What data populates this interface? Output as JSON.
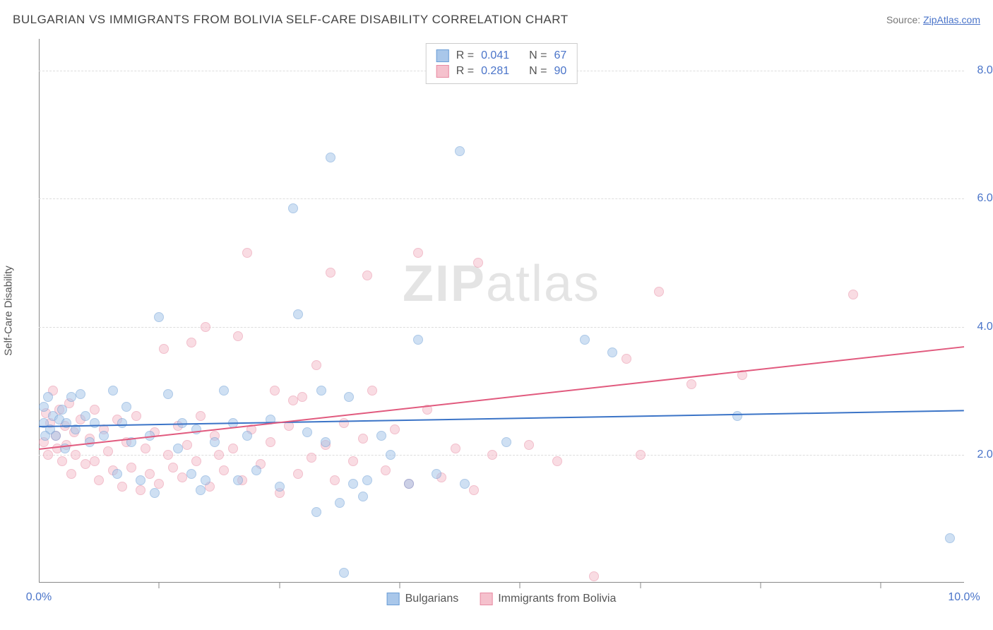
{
  "header": {
    "title": "BULGARIAN VS IMMIGRANTS FROM BOLIVIA SELF-CARE DISABILITY CORRELATION CHART",
    "source_prefix": "Source: ",
    "source_link": "ZipAtlas.com"
  },
  "chart": {
    "type": "scatter",
    "y_axis_label": "Self-Care Disability",
    "background_color": "#ffffff",
    "grid_color": "#dddddd",
    "axis_color": "#888888",
    "xlim": [
      0,
      10
    ],
    "ylim": [
      0,
      8.5
    ],
    "ytick_values": [
      2.0,
      4.0,
      6.0,
      8.0
    ],
    "ytick_labels": [
      "2.0%",
      "4.0%",
      "6.0%",
      "8.0%"
    ],
    "xtick_values": [
      0.0,
      10.0
    ],
    "xtick_labels": [
      "0.0%",
      "10.0%"
    ],
    "xtick_minor": [
      1.3,
      2.6,
      3.9,
      5.2,
      6.5,
      7.8,
      9.1
    ],
    "marker_size": 14,
    "marker_opacity": 0.55,
    "tick_label_color": "#4a74c9",
    "axis_label_color": "#555555"
  },
  "watermark": {
    "text_bold": "ZIP",
    "text_light": "atlas",
    "opacity": 0.1,
    "fontsize": 72
  },
  "series": [
    {
      "name": "Bulgarians",
      "fill_color": "#a9c7ea",
      "stroke_color": "#6b9ed6",
      "line_color": "#3b74c7",
      "r": "0.041",
      "n": "67",
      "trend": {
        "x1": 0,
        "y1": 2.45,
        "x2": 10,
        "y2": 2.7
      },
      "points": [
        [
          0.05,
          2.5
        ],
        [
          0.1,
          2.9
        ],
        [
          0.12,
          2.4
        ],
        [
          0.15,
          2.6
        ],
        [
          0.18,
          2.3
        ],
        [
          0.22,
          2.55
        ],
        [
          0.25,
          2.7
        ],
        [
          0.28,
          2.1
        ],
        [
          0.3,
          2.5
        ],
        [
          0.35,
          2.9
        ],
        [
          0.4,
          2.4
        ],
        [
          0.45,
          2.95
        ],
        [
          0.5,
          2.6
        ],
        [
          0.55,
          2.2
        ],
        [
          0.6,
          2.5
        ],
        [
          0.7,
          2.3
        ],
        [
          0.8,
          3.0
        ],
        [
          0.85,
          1.7
        ],
        [
          0.9,
          2.5
        ],
        [
          0.95,
          2.75
        ],
        [
          1.0,
          2.2
        ],
        [
          1.1,
          1.6
        ],
        [
          1.2,
          2.3
        ],
        [
          1.25,
          1.4
        ],
        [
          1.3,
          4.15
        ],
        [
          1.4,
          2.95
        ],
        [
          1.5,
          2.1
        ],
        [
          1.55,
          2.5
        ],
        [
          1.65,
          1.7
        ],
        [
          1.7,
          2.4
        ],
        [
          1.75,
          1.45
        ],
        [
          1.8,
          1.6
        ],
        [
          1.9,
          2.2
        ],
        [
          2.0,
          3.0
        ],
        [
          2.1,
          2.5
        ],
        [
          2.15,
          1.6
        ],
        [
          2.25,
          2.3
        ],
        [
          2.35,
          1.75
        ],
        [
          2.5,
          2.55
        ],
        [
          2.6,
          1.5
        ],
        [
          2.75,
          5.85
        ],
        [
          2.8,
          4.2
        ],
        [
          2.9,
          2.35
        ],
        [
          3.0,
          1.1
        ],
        [
          3.05,
          3.0
        ],
        [
          3.1,
          2.2
        ],
        [
          3.15,
          6.65
        ],
        [
          3.25,
          1.25
        ],
        [
          3.3,
          0.15
        ],
        [
          3.35,
          2.9
        ],
        [
          3.4,
          1.55
        ],
        [
          3.5,
          1.35
        ],
        [
          3.55,
          1.6
        ],
        [
          3.7,
          2.3
        ],
        [
          3.8,
          2.0
        ],
        [
          4.0,
          1.55
        ],
        [
          4.1,
          3.8
        ],
        [
          4.3,
          1.7
        ],
        [
          4.55,
          6.75
        ],
        [
          4.6,
          1.55
        ],
        [
          5.05,
          2.2
        ],
        [
          5.9,
          3.8
        ],
        [
          6.2,
          3.6
        ],
        [
          7.55,
          2.6
        ],
        [
          9.85,
          0.7
        ],
        [
          0.05,
          2.75
        ],
        [
          0.07,
          2.3
        ]
      ]
    },
    {
      "name": "Immigrants from Bolivia",
      "fill_color": "#f5c1cd",
      "stroke_color": "#e88ba3",
      "line_color": "#e15a7e",
      "r": "0.281",
      "n": "90",
      "trend": {
        "x1": 0,
        "y1": 2.1,
        "x2": 10,
        "y2": 3.7
      },
      "points": [
        [
          0.05,
          2.2
        ],
        [
          0.08,
          2.65
        ],
        [
          0.1,
          2.0
        ],
        [
          0.12,
          2.5
        ],
        [
          0.15,
          3.0
        ],
        [
          0.18,
          2.3
        ],
        [
          0.2,
          2.1
        ],
        [
          0.22,
          2.7
        ],
        [
          0.25,
          1.9
        ],
        [
          0.28,
          2.45
        ],
        [
          0.3,
          2.15
        ],
        [
          0.33,
          2.8
        ],
        [
          0.35,
          1.7
        ],
        [
          0.38,
          2.35
        ],
        [
          0.4,
          2.0
        ],
        [
          0.45,
          2.55
        ],
        [
          0.5,
          1.85
        ],
        [
          0.55,
          2.25
        ],
        [
          0.6,
          2.7
        ],
        [
          0.65,
          1.6
        ],
        [
          0.7,
          2.4
        ],
        [
          0.75,
          2.05
        ],
        [
          0.8,
          1.75
        ],
        [
          0.85,
          2.55
        ],
        [
          0.9,
          1.5
        ],
        [
          0.95,
          2.2
        ],
        [
          1.0,
          1.8
        ],
        [
          1.05,
          2.6
        ],
        [
          1.1,
          1.45
        ],
        [
          1.15,
          2.1
        ],
        [
          1.2,
          1.7
        ],
        [
          1.25,
          2.35
        ],
        [
          1.3,
          1.55
        ],
        [
          1.35,
          3.65
        ],
        [
          1.4,
          2.0
        ],
        [
          1.45,
          1.8
        ],
        [
          1.5,
          2.45
        ],
        [
          1.55,
          1.65
        ],
        [
          1.6,
          2.15
        ],
        [
          1.65,
          3.75
        ],
        [
          1.7,
          1.9
        ],
        [
          1.75,
          2.6
        ],
        [
          1.8,
          4.0
        ],
        [
          1.85,
          1.5
        ],
        [
          1.9,
          2.3
        ],
        [
          2.0,
          1.75
        ],
        [
          2.1,
          2.1
        ],
        [
          2.15,
          3.85
        ],
        [
          2.2,
          1.6
        ],
        [
          2.25,
          5.15
        ],
        [
          2.3,
          2.4
        ],
        [
          2.4,
          1.85
        ],
        [
          2.5,
          2.2
        ],
        [
          2.55,
          3.0
        ],
        [
          2.6,
          1.4
        ],
        [
          2.7,
          2.45
        ],
        [
          2.8,
          1.7
        ],
        [
          2.85,
          2.9
        ],
        [
          2.95,
          1.95
        ],
        [
          3.0,
          3.4
        ],
        [
          3.1,
          2.15
        ],
        [
          3.15,
          4.85
        ],
        [
          3.2,
          1.6
        ],
        [
          3.3,
          2.5
        ],
        [
          3.4,
          1.9
        ],
        [
          3.5,
          2.25
        ],
        [
          3.6,
          3.0
        ],
        [
          3.75,
          1.75
        ],
        [
          3.85,
          2.4
        ],
        [
          4.0,
          1.55
        ],
        [
          4.1,
          5.15
        ],
        [
          4.2,
          2.7
        ],
        [
          4.35,
          1.65
        ],
        [
          4.5,
          2.1
        ],
        [
          4.7,
          1.45
        ],
        [
          4.75,
          5.0
        ],
        [
          4.9,
          2.0
        ],
        [
          5.3,
          2.15
        ],
        [
          5.6,
          1.9
        ],
        [
          6.0,
          0.1
        ],
        [
          6.35,
          3.5
        ],
        [
          6.5,
          2.0
        ],
        [
          6.7,
          4.55
        ],
        [
          7.05,
          3.1
        ],
        [
          7.6,
          3.25
        ],
        [
          8.8,
          4.5
        ],
        [
          3.55,
          4.8
        ],
        [
          2.75,
          2.85
        ],
        [
          1.95,
          2.0
        ],
        [
          0.6,
          1.9
        ]
      ]
    }
  ],
  "legend_top": {
    "r_label": "R =",
    "n_label": "N ="
  },
  "legend_bottom": {
    "items": [
      "Bulgarians",
      "Immigrants from Bolivia"
    ]
  }
}
